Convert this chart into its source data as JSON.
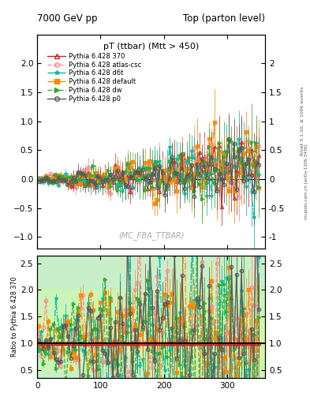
{
  "title_left": "7000 GeV pp",
  "title_right": "Top (parton level)",
  "plot_title": "pT (ttbar) (Mtt > 450)",
  "watermark": "(MC_FBA_TTBAR)",
  "right_label_top": "Rivet 3.1.10, ≥ 100k events",
  "right_label_bot": "mcplots.cern.ch [arXiv:1306.3436]",
  "ylabel_ratio": "Ratio to Pythia 6.428 370",
  "ylim_main": [
    -1.2,
    2.5
  ],
  "ylim_ratio": [
    0.35,
    2.65
  ],
  "xlim": [
    0,
    360
  ],
  "yticks_main": [
    -1.0,
    -0.5,
    0.0,
    0.5,
    1.0,
    1.5,
    2.0
  ],
  "yticks_ratio": [
    0.5,
    1.0,
    1.5,
    2.0,
    2.5
  ],
  "xticks": [
    0,
    100,
    200,
    300
  ],
  "series": [
    {
      "label": "Pythia 6.428 370",
      "color": "#cc2222",
      "linestyle": "-",
      "marker": "^",
      "marker_fc": "none",
      "lw": 1.0
    },
    {
      "label": "Pythia 6.428 atlas-csc",
      "color": "#ff8888",
      "linestyle": "--",
      "marker": "o",
      "marker_fc": "none",
      "lw": 1.0
    },
    {
      "label": "Pythia 6.428 d6t",
      "color": "#00bbaa",
      "linestyle": "-.",
      "marker": "*",
      "marker_fc": "#00bbaa",
      "lw": 1.0
    },
    {
      "label": "Pythia 6.428 default",
      "color": "#ff8800",
      "linestyle": "-.",
      "marker": "s",
      "marker_fc": "#ff8800",
      "lw": 1.0
    },
    {
      "label": "Pythia 6.428 dw",
      "color": "#33aa33",
      "linestyle": "--",
      "marker": ">",
      "marker_fc": "#33aa33",
      "lw": 1.0
    },
    {
      "label": "Pythia 6.428 p0",
      "color": "#555555",
      "linestyle": "-",
      "marker": "o",
      "marker_fc": "none",
      "lw": 1.0
    }
  ],
  "n_points": 90,
  "seed": 42
}
